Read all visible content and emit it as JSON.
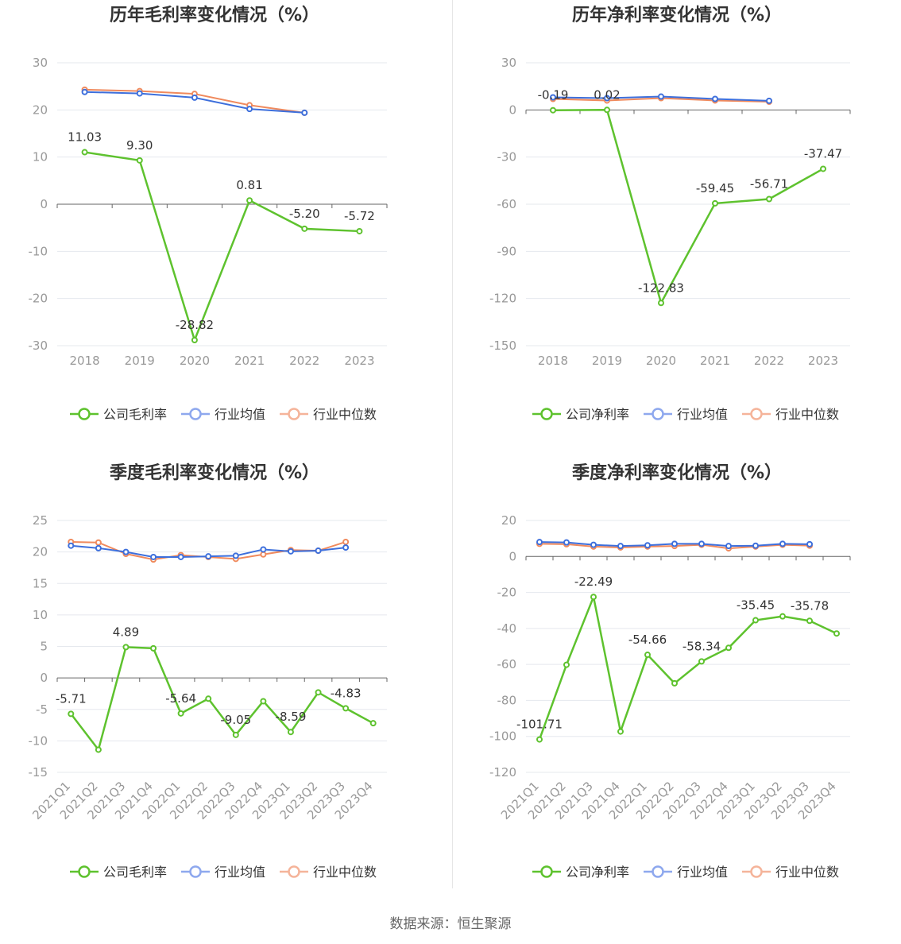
{
  "source": "数据来源：恒生聚源",
  "legend": {
    "avg": "行业均值",
    "median": "行业中位数"
  },
  "colors": {
    "company": "#5ec22e",
    "avg": "#3d6fdc",
    "median": "#f08a5d",
    "avg_legend": "#8ea8ee",
    "median_legend": "#f5b49a",
    "grid": "#e5e8ee",
    "axis": "#666666"
  },
  "chart_data": [
    {
      "id": "annual-gross",
      "type": "line",
      "title": "历年毛利率变化情况（%）",
      "categories": [
        "2018",
        "2019",
        "2020",
        "2021",
        "2022",
        "2023"
      ],
      "ylim": [
        -30,
        30
      ],
      "yticks": [
        30,
        20,
        10,
        0,
        -10,
        -20,
        -30
      ],
      "series": [
        {
          "key": "company",
          "name": "公司毛利率",
          "values": [
            11.03,
            9.3,
            -28.82,
            0.81,
            -5.2,
            -5.72
          ],
          "labels": [
            "11.03",
            "9.30",
            "-28.82",
            "0.81",
            "-5.20",
            "-5.72"
          ]
        },
        {
          "key": "avg",
          "name": "行业均值",
          "values": [
            23.8,
            23.5,
            22.6,
            20.2,
            19.4,
            null
          ]
        },
        {
          "key": "median",
          "name": "行业中位数",
          "values": [
            24.3,
            24.0,
            23.4,
            21.0,
            19.4,
            null
          ]
        }
      ],
      "grid": true,
      "legend_position": "bottom"
    },
    {
      "id": "annual-net",
      "type": "line",
      "title": "历年净利率变化情况（%）",
      "categories": [
        "2018",
        "2019",
        "2020",
        "2021",
        "2022",
        "2023"
      ],
      "ylim": [
        -150,
        30
      ],
      "yticks": [
        30,
        0,
        -30,
        -60,
        -90,
        -120,
        -150
      ],
      "series": [
        {
          "key": "company",
          "name": "公司净利率",
          "values": [
            -0.19,
            0.02,
            -122.83,
            -59.45,
            -56.71,
            -37.47
          ],
          "labels": [
            "-0.19",
            "0.02",
            "-122.83",
            "-59.45",
            "-56.71",
            "-37.47"
          ]
        },
        {
          "key": "avg",
          "name": "行业均值",
          "values": [
            8.0,
            7.5,
            8.5,
            7.0,
            5.8,
            null
          ]
        },
        {
          "key": "median",
          "name": "行业中位数",
          "values": [
            7.0,
            6.0,
            7.5,
            6.0,
            5.2,
            null
          ]
        }
      ],
      "grid": true,
      "legend_position": "bottom"
    },
    {
      "id": "quarterly-gross",
      "type": "line",
      "title": "季度毛利率变化情况（%）",
      "categories": [
        "2021Q1",
        "2021Q2",
        "2021Q3",
        "2021Q4",
        "2022Q1",
        "2022Q2",
        "2022Q3",
        "2022Q4",
        "2023Q1",
        "2023Q2",
        "2023Q3",
        "2023Q4"
      ],
      "ylim": [
        -15,
        25
      ],
      "yticks": [
        25,
        20,
        15,
        10,
        5,
        0,
        -5,
        -10,
        -15
      ],
      "series": [
        {
          "key": "company",
          "name": "公司毛利率",
          "values": [
            -5.71,
            -11.4,
            4.89,
            4.7,
            -5.64,
            -3.3,
            -9.05,
            -3.7,
            -8.59,
            -2.3,
            -4.83,
            -7.2
          ],
          "labels": [
            "-5.71",
            null,
            "4.89",
            null,
            "-5.64",
            null,
            "-9.05",
            null,
            "-8.59",
            null,
            "-4.83",
            null
          ]
        },
        {
          "key": "avg",
          "name": "行业均值",
          "values": [
            21.0,
            20.6,
            20.0,
            19.2,
            19.2,
            19.3,
            19.4,
            20.4,
            20.1,
            20.2,
            20.7,
            null
          ]
        },
        {
          "key": "median",
          "name": "行业中位数",
          "values": [
            21.6,
            21.5,
            19.7,
            18.8,
            19.5,
            19.2,
            18.9,
            19.6,
            20.3,
            20.2,
            21.6,
            null
          ]
        }
      ],
      "grid": true,
      "legend_position": "bottom"
    },
    {
      "id": "quarterly-net",
      "type": "line",
      "title": "季度净利率变化情况（%）",
      "categories": [
        "2021Q1",
        "2021Q2",
        "2021Q3",
        "2021Q4",
        "2022Q1",
        "2022Q2",
        "2022Q3",
        "2022Q4",
        "2023Q1",
        "2023Q2",
        "2023Q3",
        "2023Q4"
      ],
      "ylim": [
        -120,
        20
      ],
      "yticks": [
        20,
        0,
        -20,
        -40,
        -60,
        -80,
        -100,
        -120
      ],
      "series": [
        {
          "key": "company",
          "name": "公司净利率",
          "values": [
            -101.71,
            -60.2,
            -22.49,
            -97.3,
            -54.66,
            -70.5,
            -58.34,
            -50.8,
            -35.45,
            -33.3,
            -35.78,
            -42.8
          ],
          "labels": [
            "-101.71",
            null,
            "-22.49",
            null,
            "-54.66",
            null,
            "-58.34",
            null,
            "-35.45",
            null,
            "-35.78",
            null
          ]
        },
        {
          "key": "avg",
          "name": "行业均值",
          "values": [
            8.0,
            7.8,
            6.5,
            5.8,
            6.2,
            7.0,
            7.0,
            5.8,
            6.0,
            7.0,
            6.8,
            null
          ]
        },
        {
          "key": "median",
          "name": "行业中位数",
          "values": [
            7.0,
            6.8,
            5.5,
            5.0,
            5.5,
            5.8,
            6.5,
            4.5,
            5.5,
            6.5,
            6.0,
            null
          ]
        }
      ],
      "grid": true,
      "legend_position": "bottom"
    }
  ]
}
